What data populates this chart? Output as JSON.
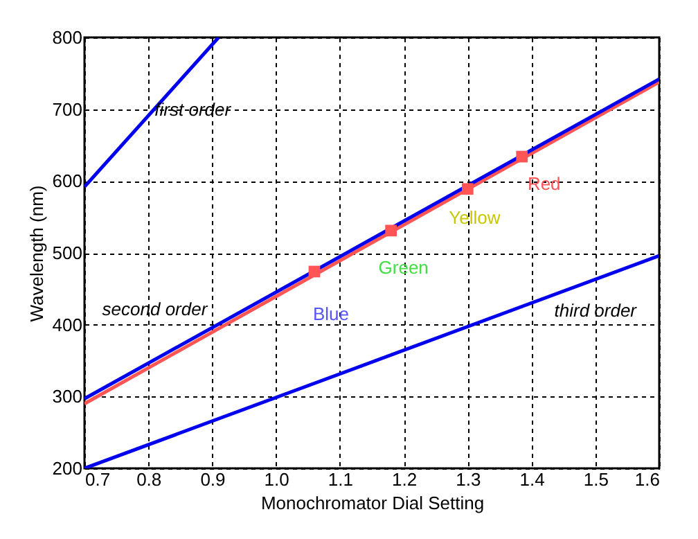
{
  "chart_data": {
    "type": "line",
    "xlabel": "Monochromator Dial Setting",
    "ylabel": "Wavelength (nm)",
    "xlim": [
      0.7,
      1.6
    ],
    "xticks": [
      0.7,
      0.8,
      0.9,
      {
        "value": 1.0,
        "label": "1.0"
      },
      1.1,
      1.2,
      1.3,
      1.4,
      1.5,
      1.6
    ],
    "ylim": [
      200,
      800
    ],
    "yticks": [
      200,
      300,
      400,
      500,
      600,
      700,
      800
    ],
    "grid": true,
    "series": [
      {
        "color": "#ff5555",
        "x": [
          0.7,
          1.6
        ],
        "values": [
          290,
          738
        ]
      },
      {
        "color": "#0000ee",
        "x": [
          0.7,
          0.91
        ],
        "values": [
          592,
          800
        ]
      },
      {
        "color": "#0000ee",
        "x": [
          0.7,
          1.6
        ],
        "values": [
          297,
          742
        ]
      },
      {
        "color": "#0000ee",
        "x": [
          0.7,
          1.6
        ],
        "values": [
          200,
          496
        ]
      },
      {
        "type": "scatter",
        "color": "#ff5555",
        "marker": "square",
        "x": [
          1.06,
          1.18,
          1.3,
          1.385
        ],
        "values": [
          474,
          531,
          589,
          634
        ]
      }
    ],
    "annotations": [
      {
        "text": "first order",
        "x": 0.8,
        "y": 691
      },
      {
        "text": "second order",
        "x": 0.81,
        "y": 351
      },
      {
        "text": "third order",
        "x": 1.5,
        "y": 463
      },
      {
        "text": "Blue",
        "x": 1.06,
        "y": 474
      },
      {
        "text": "Green",
        "x": 1.18,
        "y": 531
      },
      {
        "text": "Yellow",
        "x": 1.3,
        "y": 589
      },
      {
        "text": "Red",
        "x": 1.385,
        "y": 634
      }
    ]
  }
}
